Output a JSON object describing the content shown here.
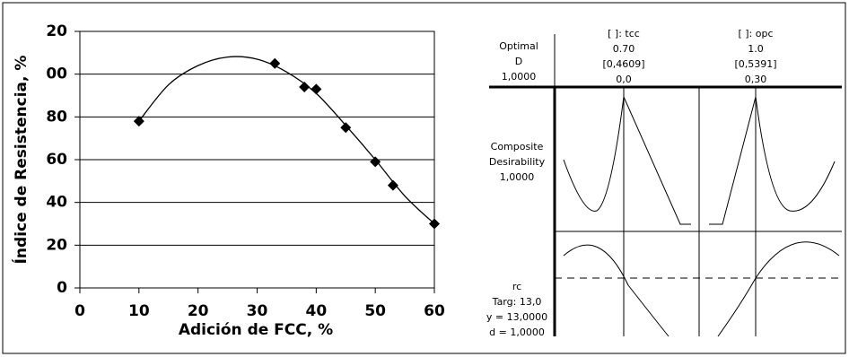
{
  "chart_data": {
    "type": "scatter",
    "xlabel": "Adición de FCC, %",
    "ylabel": "Índice de Resistencia, %",
    "xlim": [
      0,
      60
    ],
    "ylim": [
      0,
      120
    ],
    "xticks": [
      0,
      10,
      20,
      30,
      40,
      50,
      60
    ],
    "yticks": [
      0,
      20,
      40,
      60,
      80,
      {
        "value": 100,
        "label": "00"
      },
      {
        "value": 120,
        "label": "20"
      }
    ],
    "grid": true,
    "series": [
      {
        "color": "#000000",
        "marker": "diamond",
        "x": [
          10,
          33,
          38,
          40,
          45,
          50,
          53,
          60
        ],
        "values": [
          78,
          105,
          94,
          93,
          75,
          59,
          48,
          30
        ]
      },
      {
        "color": "#000000",
        "marker": "none",
        "x": [
          10,
          15,
          20,
          25,
          30,
          35,
          40,
          45,
          50,
          55,
          60
        ],
        "values": [
          78,
          95,
          104,
          108,
          107,
          101,
          91,
          76,
          60,
          43,
          30
        ]
      }
    ]
  },
  "optimizer": {
    "optimal": [
      "Optimal",
      "D",
      "1,0000"
    ],
    "factors": [
      [
        "[ ]: tcc",
        "0.70",
        "[0,4609]",
        "0,0"
      ],
      [
        "[ ]: opc",
        "1.0",
        "[0,5391]",
        "0,30"
      ]
    ],
    "composite": [
      "Composite",
      "Desirability",
      "1,0000"
    ],
    "response": [
      "rc",
      "Targ: 13,0",
      "y = 13,0000",
      "d = 1,0000"
    ]
  }
}
